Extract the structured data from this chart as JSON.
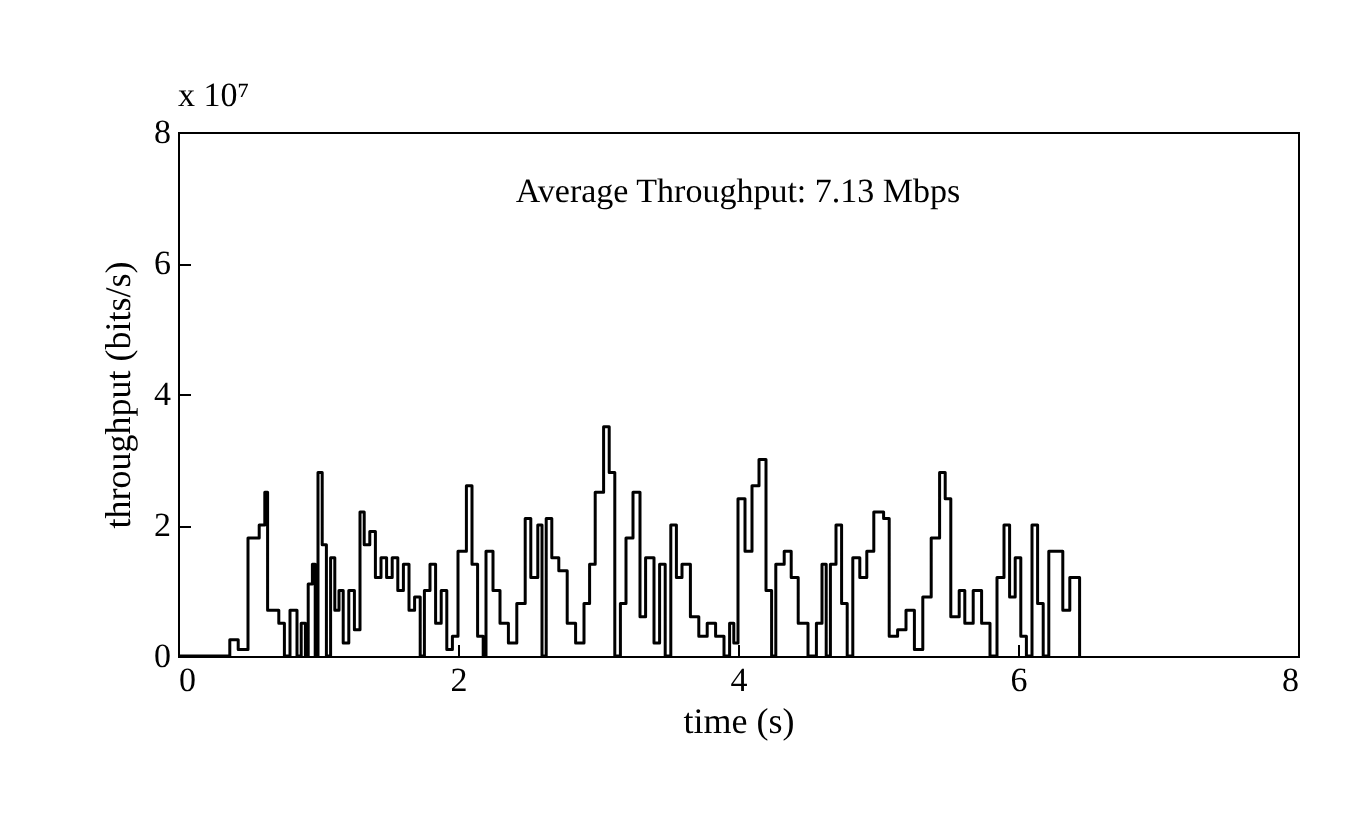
{
  "chart_data": {
    "type": "step",
    "xlabel": "time (s)",
    "ylabel": "throughput (bits/s)",
    "annotations": [
      "Average Throughput: 7.13 Mbps",
      "x 10⁷"
    ],
    "xlim": [
      0,
      8
    ],
    "xticks": [
      0,
      2,
      4,
      6,
      8
    ],
    "ylim": [
      0,
      8
    ],
    "yticks": [
      0,
      2,
      4,
      6,
      8
    ],
    "grid": false,
    "x": [
      0,
      0.37,
      0.43,
      0.5,
      0.58,
      0.62,
      0.64,
      0.72,
      0.76,
      0.8,
      0.85,
      0.88,
      0.91,
      0.93,
      0.96,
      0.98,
      1.0,
      1.03,
      1.06,
      1.09,
      1.12,
      1.15,
      1.18,
      1.22,
      1.26,
      1.3,
      1.33,
      1.37,
      1.41,
      1.45,
      1.49,
      1.53,
      1.57,
      1.61,
      1.65,
      1.69,
      1.73,
      1.76,
      1.8,
      1.84,
      1.88,
      1.92,
      1.96,
      2.0,
      2.06,
      2.1,
      2.14,
      2.18,
      2.2,
      2.25,
      2.3,
      2.36,
      2.42,
      2.48,
      2.52,
      2.57,
      2.6,
      2.63,
      2.67,
      2.72,
      2.78,
      2.84,
      2.9,
      2.94,
      2.98,
      3.04,
      3.08,
      3.12,
      3.16,
      3.2,
      3.25,
      3.3,
      3.34,
      3.4,
      3.44,
      3.48,
      3.52,
      3.56,
      3.6,
      3.66,
      3.72,
      3.78,
      3.84,
      3.9,
      3.94,
      3.97,
      4.0,
      4.05,
      4.1,
      4.15,
      4.2,
      4.24,
      4.27,
      4.33,
      4.38,
      4.43,
      4.5,
      4.56,
      4.6,
      4.63,
      4.66,
      4.7,
      4.74,
      4.78,
      4.82,
      4.87,
      4.92,
      4.97,
      5.04,
      5.08,
      5.14,
      5.2,
      5.26,
      5.32,
      5.38,
      5.44,
      5.48,
      5.52,
      5.58,
      5.62,
      5.68,
      5.74,
      5.8,
      5.85,
      5.9,
      5.94,
      5.98,
      6.02,
      6.06,
      6.1,
      6.14,
      6.18,
      6.22,
      6.28,
      6.32,
      6.37,
      6.44
    ],
    "series": [
      {
        "color": "#000000",
        "values": [
          0,
          0.25,
          0.1,
          1.8,
          2.0,
          2.5,
          0.7,
          0.5,
          0,
          0.7,
          0,
          0.5,
          0,
          1.1,
          1.4,
          0,
          2.8,
          1.7,
          0,
          1.5,
          0.7,
          1.0,
          0.2,
          1.0,
          0.4,
          2.2,
          1.7,
          1.9,
          1.2,
          1.5,
          1.2,
          1.5,
          1.0,
          1.4,
          0.7,
          0.9,
          0,
          1.0,
          1.4,
          0.5,
          1.0,
          0.1,
          0.3,
          1.6,
          2.6,
          1.4,
          0.3,
          0,
          1.6,
          1.0,
          0.5,
          0.2,
          0.8,
          2.1,
          1.2,
          2.0,
          0,
          2.1,
          1.5,
          1.3,
          0.5,
          0.2,
          0.8,
          1.4,
          2.5,
          3.5,
          2.8,
          0,
          0.8,
          1.8,
          2.5,
          0.6,
          1.5,
          0.2,
          1.4,
          0,
          2.0,
          1.2,
          1.4,
          0.6,
          0.3,
          0.5,
          0.3,
          0,
          0.5,
          0.2,
          2.4,
          1.6,
          2.6,
          3.0,
          1.0,
          0,
          1.4,
          1.6,
          1.2,
          0.5,
          0,
          0.5,
          1.4,
          0,
          1.4,
          2.0,
          0.8,
          0,
          1.5,
          1.2,
          1.6,
          2.2,
          2.1,
          0.3,
          0.4,
          0.7,
          0.1,
          0.9,
          1.8,
          2.8,
          2.4,
          0.6,
          1.0,
          0.5,
          1.0,
          0.5,
          0,
          1.2,
          2.0,
          0.9,
          1.5,
          0.3,
          0,
          2.0,
          0.8,
          0,
          1.6,
          1.6,
          0.7,
          1.2,
          0
        ]
      }
    ]
  }
}
